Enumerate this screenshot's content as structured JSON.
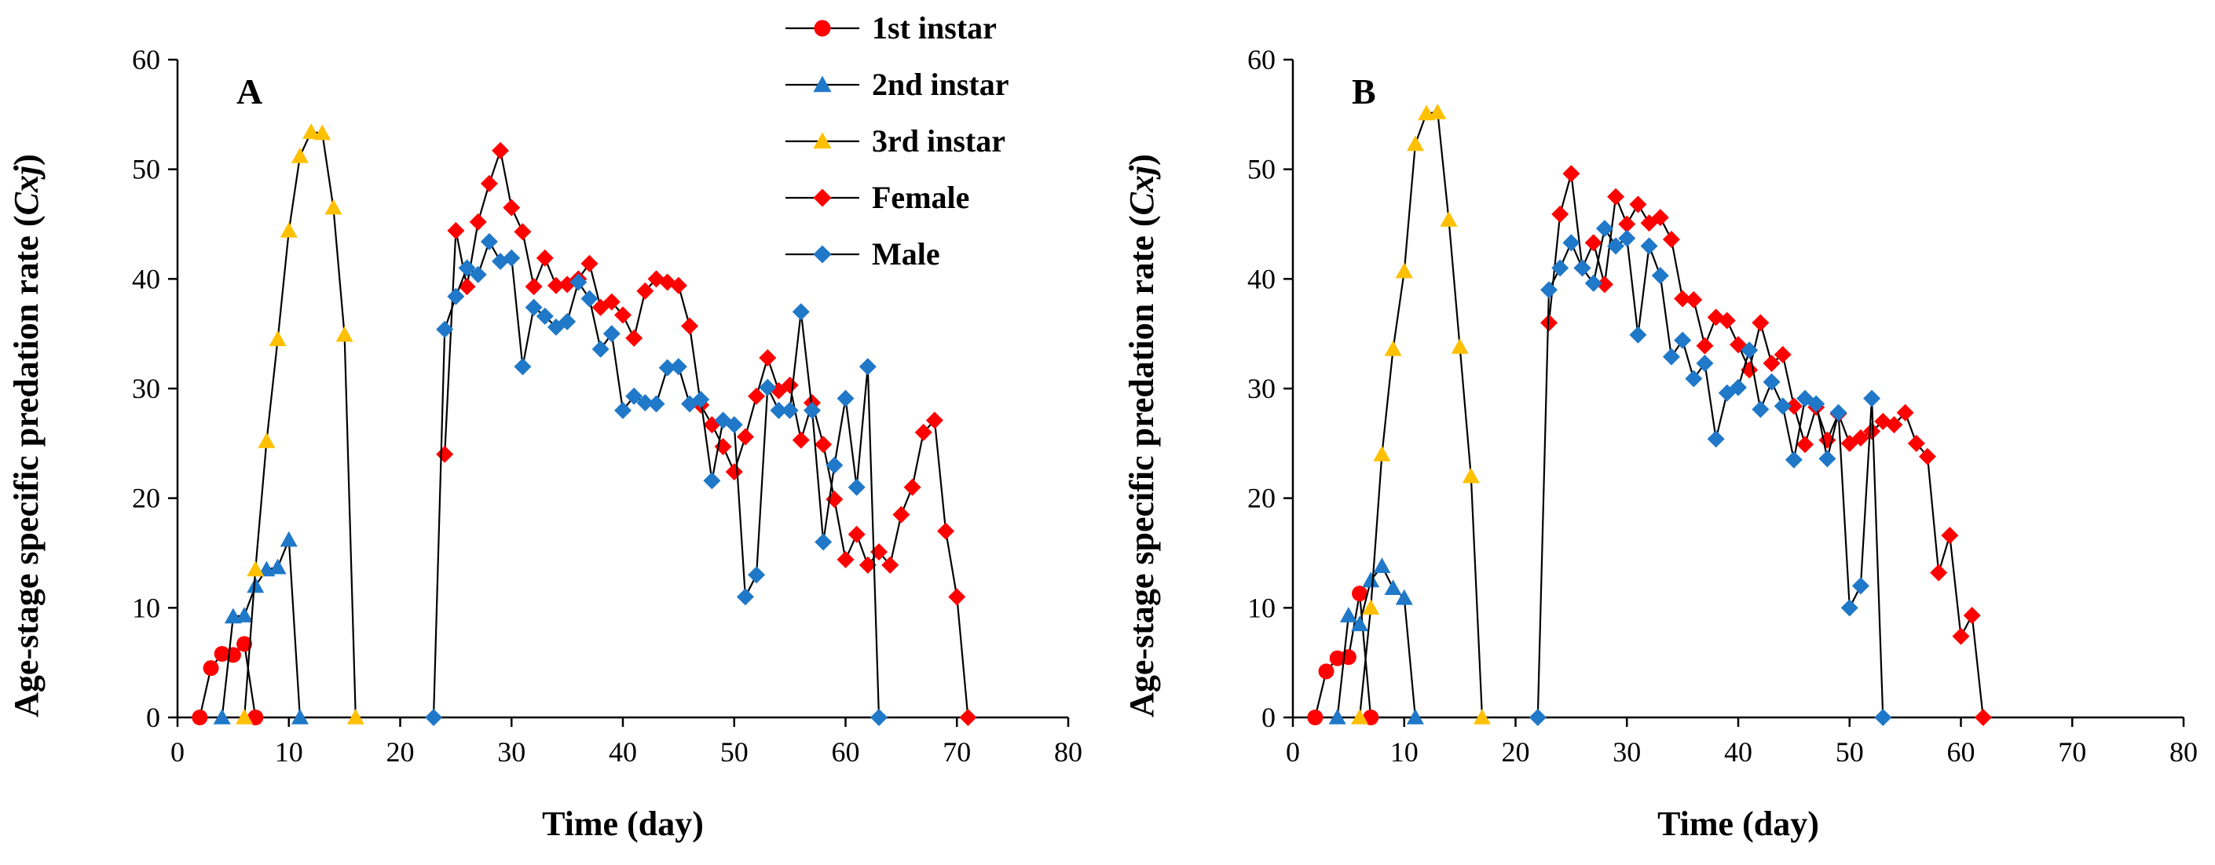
{
  "chart_data": [
    {
      "type": "line",
      "panel_label": "A",
      "xlabel": "Time (day)",
      "ylabel_main": "Age-stage specific predation rate (",
      "ylabel_symbol": "Cxj",
      "ylabel_end": ")",
      "xlim": [
        0,
        80
      ],
      "ylim": [
        0,
        60
      ],
      "xticks": [
        0,
        10,
        20,
        30,
        40,
        50,
        60,
        70,
        80
      ],
      "yticks": [
        0,
        10,
        20,
        30,
        40,
        50,
        60
      ],
      "grid": false,
      "legend_position": "top-center",
      "series": [
        {
          "name": "1st instar",
          "marker": "circle",
          "color": "#ff0000",
          "x": [
            2,
            3,
            4,
            5,
            6,
            7
          ],
          "y": [
            0,
            4.5,
            5.8,
            5.7,
            6.7,
            0
          ]
        },
        {
          "name": "2nd instar",
          "marker": "triangle",
          "color": "#1f78c8",
          "x": [
            4,
            5,
            6,
            7,
            8,
            9,
            10,
            11
          ],
          "y": [
            0,
            9.2,
            9.3,
            12,
            13.5,
            13.7,
            16.2,
            0
          ]
        },
        {
          "name": "3rd instar",
          "marker": "triangle",
          "color": "#ffc000",
          "x": [
            6,
            7,
            8,
            9,
            10,
            11,
            12,
            13,
            14,
            15,
            16
          ],
          "y": [
            0,
            13.5,
            25.2,
            34.5,
            44.4,
            51.2,
            53.4,
            53.3,
            46.5,
            34.9,
            0
          ]
        },
        {
          "name": "Female",
          "marker": "diamond",
          "color": "#ff0000",
          "x": [
            24,
            25,
            26,
            27,
            28,
            29,
            30,
            31,
            32,
            33,
            34,
            35,
            36,
            37,
            38,
            39,
            40,
            41,
            42,
            43,
            44,
            45,
            46,
            47,
            48,
            49,
            50,
            51,
            52,
            53,
            54,
            55,
            56,
            57,
            58,
            59,
            60,
            61,
            62,
            63,
            64,
            65,
            66,
            67,
            68,
            69,
            70,
            71
          ],
          "y": [
            24,
            44.4,
            39.3,
            45.2,
            48.7,
            51.7,
            46.5,
            44.3,
            39.3,
            41.9,
            39.4,
            39.5,
            40,
            41.4,
            37.4,
            37.9,
            36.7,
            34.6,
            38.9,
            40,
            39.7,
            39.4,
            35.7,
            28.5,
            26.7,
            24.7,
            22.4,
            25.6,
            29.3,
            32.8,
            29.8,
            30.3,
            25.3,
            28.7,
            24.9,
            19.9,
            14.4,
            16.7,
            13.9,
            15.1,
            13.9,
            18.5,
            21,
            26,
            27.1,
            17,
            11,
            0
          ]
        },
        {
          "name": "Male",
          "marker": "diamond",
          "color": "#1f78c8",
          "x": [
            23,
            24,
            25,
            26,
            27,
            28,
            29,
            30,
            31,
            32,
            33,
            34,
            35,
            36,
            37,
            38,
            39,
            40,
            41,
            42,
            43,
            44,
            45,
            46,
            47,
            48,
            49,
            50,
            51,
            52,
            53,
            54,
            55,
            56,
            57,
            58,
            59,
            60,
            61,
            62,
            63
          ],
          "y": [
            0,
            35.4,
            38.4,
            41,
            40.4,
            43.4,
            41.6,
            41.9,
            32,
            37.4,
            36.6,
            35.6,
            36.1,
            39.7,
            38.2,
            33.6,
            35,
            28,
            29.3,
            28.7,
            28.6,
            31.9,
            32,
            28.6,
            29,
            21.6,
            27.1,
            26.7,
            11,
            13,
            30.1,
            28,
            28,
            37,
            28,
            16,
            23,
            29.1,
            21,
            32,
            0
          ]
        }
      ]
    },
    {
      "type": "line",
      "panel_label": "B",
      "xlabel": "Time (day)",
      "ylabel_main": "Age-stage specific predation rate (",
      "ylabel_symbol": "Cxj",
      "ylabel_end": ")",
      "xlim": [
        0,
        80
      ],
      "ylim": [
        0,
        60
      ],
      "xticks": [
        0,
        10,
        20,
        30,
        40,
        50,
        60,
        70,
        80
      ],
      "yticks": [
        0,
        10,
        20,
        30,
        40,
        50,
        60
      ],
      "grid": false,
      "series": [
        {
          "name": "1st instar",
          "marker": "circle",
          "color": "#ff0000",
          "x": [
            2,
            3,
            4,
            5,
            6,
            7
          ],
          "y": [
            0,
            4.2,
            5.4,
            5.5,
            11.3,
            0
          ]
        },
        {
          "name": "2nd instar",
          "marker": "triangle",
          "color": "#1f78c8",
          "x": [
            4,
            5,
            6,
            7,
            8,
            9,
            10,
            11
          ],
          "y": [
            0,
            9.3,
            8.5,
            12.5,
            13.8,
            11.8,
            10.9,
            0
          ]
        },
        {
          "name": "3rd instar",
          "marker": "triangle",
          "color": "#ffc000",
          "x": [
            6,
            7,
            8,
            9,
            10,
            11,
            12,
            13,
            14,
            15,
            16,
            17
          ],
          "y": [
            0,
            10,
            24,
            33.6,
            40.7,
            52.3,
            55.1,
            55.2,
            45.4,
            33.8,
            22,
            0
          ]
        },
        {
          "name": "Female",
          "marker": "diamond",
          "color": "#ff0000",
          "x": [
            23,
            24,
            25,
            26,
            27,
            28,
            29,
            30,
            31,
            32,
            33,
            34,
            35,
            36,
            37,
            38,
            39,
            40,
            41,
            42,
            43,
            44,
            45,
            46,
            47,
            48,
            49,
            50,
            51,
            52,
            53,
            54,
            55,
            56,
            57,
            58,
            59,
            60,
            61,
            62
          ],
          "y": [
            36,
            45.9,
            49.6,
            41,
            43.3,
            39.5,
            47.5,
            45,
            46.8,
            45.1,
            45.6,
            43.6,
            38.2,
            38.1,
            33.9,
            36.5,
            36.2,
            34,
            31.7,
            36,
            32.3,
            33.1,
            28.4,
            24.9,
            28.3,
            25.3,
            27.7,
            25,
            25.5,
            26.1,
            27,
            26.7,
            27.8,
            25,
            23.8,
            13.2,
            16.6,
            7.4,
            9.3,
            0
          ]
        },
        {
          "name": "Male",
          "marker": "diamond",
          "color": "#1f78c8",
          "x": [
            22,
            23,
            24,
            25,
            26,
            27,
            28,
            29,
            30,
            31,
            32,
            33,
            34,
            35,
            36,
            37,
            38,
            39,
            40,
            41,
            42,
            43,
            44,
            45,
            46,
            47,
            48,
            49,
            50,
            51,
            52,
            53
          ],
          "y": [
            0,
            39,
            41,
            43.3,
            41,
            39.6,
            44.6,
            43,
            43.7,
            34.9,
            43,
            40.3,
            32.9,
            34.4,
            30.9,
            32.3,
            25.4,
            29.6,
            30.1,
            33.5,
            28.1,
            30.6,
            28.4,
            23.5,
            29.1,
            28.6,
            23.6,
            27.8,
            10,
            12,
            29.1,
            0
          ]
        }
      ]
    }
  ]
}
